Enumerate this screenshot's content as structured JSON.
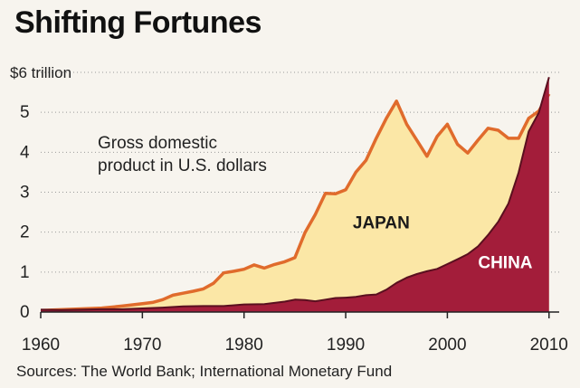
{
  "chart_data": {
    "type": "area",
    "title": "Shifting Fortunes",
    "subtitle_lines": [
      "Gross domestic",
      "product in U.S. dollars"
    ],
    "source": "Sources: The World Bank; International Monetary Fund",
    "xlim": [
      1960,
      2011
    ],
    "ylim": [
      0,
      6
    ],
    "x_ticks": [
      1960,
      1970,
      1980,
      1990,
      2000,
      2010
    ],
    "x_tick_labels": [
      "1960",
      "1970",
      "1980",
      "1990",
      "2000",
      "2010"
    ],
    "y_ticks": [
      0,
      1,
      2,
      3,
      4,
      5,
      6
    ],
    "y_tick_labels": [
      "0",
      "1",
      "2",
      "3",
      "4",
      "5",
      "$6 trillion"
    ],
    "grid": true,
    "series": [
      {
        "name": "JAPAN",
        "color": "#fbe7a6",
        "line_color": "#e06b2c",
        "points": [
          [
            1960,
            0.04
          ],
          [
            1962,
            0.06
          ],
          [
            1964,
            0.08
          ],
          [
            1966,
            0.1
          ],
          [
            1968,
            0.15
          ],
          [
            1970,
            0.21
          ],
          [
            1971,
            0.24
          ],
          [
            1972,
            0.31
          ],
          [
            1973,
            0.42
          ],
          [
            1974,
            0.47
          ],
          [
            1975,
            0.52
          ],
          [
            1976,
            0.58
          ],
          [
            1977,
            0.72
          ],
          [
            1978,
            0.98
          ],
          [
            1979,
            1.02
          ],
          [
            1980,
            1.07
          ],
          [
            1981,
            1.18
          ],
          [
            1982,
            1.1
          ],
          [
            1983,
            1.19
          ],
          [
            1984,
            1.26
          ],
          [
            1985,
            1.36
          ],
          [
            1986,
            1.99
          ],
          [
            1987,
            2.44
          ],
          [
            1988,
            2.97
          ],
          [
            1989,
            2.96
          ],
          [
            1990,
            3.06
          ],
          [
            1991,
            3.5
          ],
          [
            1992,
            3.8
          ],
          [
            1993,
            4.35
          ],
          [
            1994,
            4.85
          ],
          [
            1995,
            5.28
          ],
          [
            1996,
            4.7
          ],
          [
            1997,
            4.3
          ],
          [
            1998,
            3.9
          ],
          [
            1999,
            4.4
          ],
          [
            2000,
            4.7
          ],
          [
            2001,
            4.2
          ],
          [
            2002,
            3.98
          ],
          [
            2003,
            4.3
          ],
          [
            2004,
            4.6
          ],
          [
            2005,
            4.55
          ],
          [
            2006,
            4.35
          ],
          [
            2007,
            4.35
          ],
          [
            2008,
            4.85
          ],
          [
            2009,
            5.03
          ],
          [
            2010,
            5.46
          ]
        ]
      },
      {
        "name": "CHINA",
        "color": "#a31d3a",
        "line_color": "#5a0f1f",
        "points": [
          [
            1960,
            0.06
          ],
          [
            1962,
            0.05
          ],
          [
            1964,
            0.06
          ],
          [
            1966,
            0.07
          ],
          [
            1968,
            0.07
          ],
          [
            1970,
            0.09
          ],
          [
            1972,
            0.11
          ],
          [
            1974,
            0.14
          ],
          [
            1976,
            0.15
          ],
          [
            1978,
            0.15
          ],
          [
            1980,
            0.19
          ],
          [
            1982,
            0.2
          ],
          [
            1984,
            0.26
          ],
          [
            1985,
            0.31
          ],
          [
            1986,
            0.3
          ],
          [
            1987,
            0.27
          ],
          [
            1988,
            0.31
          ],
          [
            1989,
            0.35
          ],
          [
            1990,
            0.36
          ],
          [
            1991,
            0.38
          ],
          [
            1992,
            0.42
          ],
          [
            1993,
            0.44
          ],
          [
            1994,
            0.56
          ],
          [
            1995,
            0.73
          ],
          [
            1996,
            0.86
          ],
          [
            1997,
            0.95
          ],
          [
            1998,
            1.02
          ],
          [
            1999,
            1.08
          ],
          [
            2000,
            1.2
          ],
          [
            2001,
            1.32
          ],
          [
            2002,
            1.45
          ],
          [
            2003,
            1.64
          ],
          [
            2004,
            1.93
          ],
          [
            2005,
            2.26
          ],
          [
            2006,
            2.71
          ],
          [
            2007,
            3.49
          ],
          [
            2008,
            4.52
          ],
          [
            2009,
            4.99
          ],
          [
            2010,
            5.88
          ]
        ]
      }
    ],
    "annotations": [
      {
        "text": "JAPAN",
        "x": 1993.5,
        "y": 2.1,
        "color": "#1a1a1a"
      },
      {
        "text": "CHINA",
        "x": 2005.7,
        "y": 1.1,
        "color": "#ffffff"
      }
    ]
  }
}
